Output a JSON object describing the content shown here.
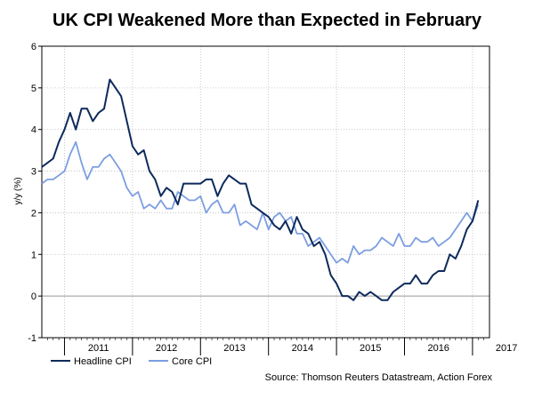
{
  "title": "UK CPI Weakened More than Expected in February",
  "source": "Source: Thomson Reuters Datastream, Action Forex",
  "colors": {
    "headline": "#0d2a5c",
    "core": "#7c9ee0",
    "zero_line": "#999999",
    "grid": "#bdbdbd"
  },
  "chart_data": {
    "type": "line",
    "ylabel": "y/y (%)",
    "xlabel": "",
    "ylim": [
      -1,
      6
    ],
    "yticks": [
      "-1",
      "0",
      "1",
      "2",
      "3",
      "4",
      "5",
      "6"
    ],
    "xlim": [
      "2010-09",
      "2017-04"
    ],
    "year_labels": [
      "2011",
      "2012",
      "2013",
      "2014",
      "2015",
      "2016",
      "2017"
    ],
    "grid": true,
    "legend_position": "bottom-left",
    "x": [
      "2010-09",
      "2010-10",
      "2010-11",
      "2010-12",
      "2011-01",
      "2011-02",
      "2011-03",
      "2011-04",
      "2011-05",
      "2011-06",
      "2011-07",
      "2011-08",
      "2011-09",
      "2011-10",
      "2011-11",
      "2011-12",
      "2012-01",
      "2012-02",
      "2012-03",
      "2012-04",
      "2012-05",
      "2012-06",
      "2012-07",
      "2012-08",
      "2012-09",
      "2012-10",
      "2012-11",
      "2012-12",
      "2013-01",
      "2013-02",
      "2013-03",
      "2013-04",
      "2013-05",
      "2013-06",
      "2013-07",
      "2013-08",
      "2013-09",
      "2013-10",
      "2013-11",
      "2013-12",
      "2014-01",
      "2014-02",
      "2014-03",
      "2014-04",
      "2014-05",
      "2014-06",
      "2014-07",
      "2014-08",
      "2014-09",
      "2014-10",
      "2014-11",
      "2014-12",
      "2015-01",
      "2015-02",
      "2015-03",
      "2015-04",
      "2015-05",
      "2015-06",
      "2015-07",
      "2015-08",
      "2015-09",
      "2015-10",
      "2015-11",
      "2015-12",
      "2016-01",
      "2016-02",
      "2016-03",
      "2016-04",
      "2016-05",
      "2016-06",
      "2016-07",
      "2016-08",
      "2016-09",
      "2016-10",
      "2016-11",
      "2016-12",
      "2017-01",
      "2017-02"
    ],
    "series": [
      {
        "name": "Headline CPI",
        "values": [
          3.1,
          3.2,
          3.3,
          3.7,
          4.0,
          4.4,
          4.0,
          4.5,
          4.5,
          4.2,
          4.4,
          4.5,
          5.2,
          5.0,
          4.8,
          4.2,
          3.6,
          3.4,
          3.5,
          3.0,
          2.8,
          2.4,
          2.6,
          2.5,
          2.2,
          2.7,
          2.7,
          2.7,
          2.7,
          2.8,
          2.8,
          2.4,
          2.7,
          2.9,
          2.8,
          2.7,
          2.7,
          2.2,
          2.1,
          2.0,
          1.9,
          1.7,
          1.6,
          1.8,
          1.5,
          1.9,
          1.6,
          1.5,
          1.2,
          1.3,
          1.0,
          0.5,
          0.3,
          0.0,
          0.0,
          -0.1,
          0.1,
          0.0,
          0.1,
          0.0,
          -0.1,
          -0.1,
          0.1,
          0.2,
          0.3,
          0.3,
          0.5,
          0.3,
          0.3,
          0.5,
          0.6,
          0.6,
          1.0,
          0.9,
          1.2,
          1.6,
          1.8,
          2.3
        ]
      },
      {
        "name": "Core CPI",
        "values": [
          2.7,
          2.8,
          2.8,
          2.9,
          3.0,
          3.4,
          3.7,
          3.2,
          2.8,
          3.1,
          3.1,
          3.3,
          3.4,
          3.2,
          3.0,
          2.6,
          2.4,
          2.5,
          2.1,
          2.2,
          2.1,
          2.3,
          2.1,
          2.1,
          2.5,
          2.4,
          2.3,
          2.3,
          2.4,
          2.0,
          2.2,
          2.3,
          2.0,
          2.0,
          2.2,
          1.7,
          1.8,
          1.7,
          1.6,
          2.0,
          1.6,
          1.9,
          2.0,
          1.8,
          1.9,
          1.5,
          1.5,
          1.2,
          1.3,
          1.4,
          1.2,
          1.0,
          0.8,
          0.9,
          0.8,
          1.2,
          1.0,
          1.1,
          1.1,
          1.2,
          1.4,
          1.3,
          1.2,
          1.5,
          1.2,
          1.2,
          1.4,
          1.3,
          1.3,
          1.4,
          1.2,
          1.3,
          1.4,
          1.6,
          1.8,
          2.0,
          1.8,
          2.2
        ]
      }
    ]
  }
}
